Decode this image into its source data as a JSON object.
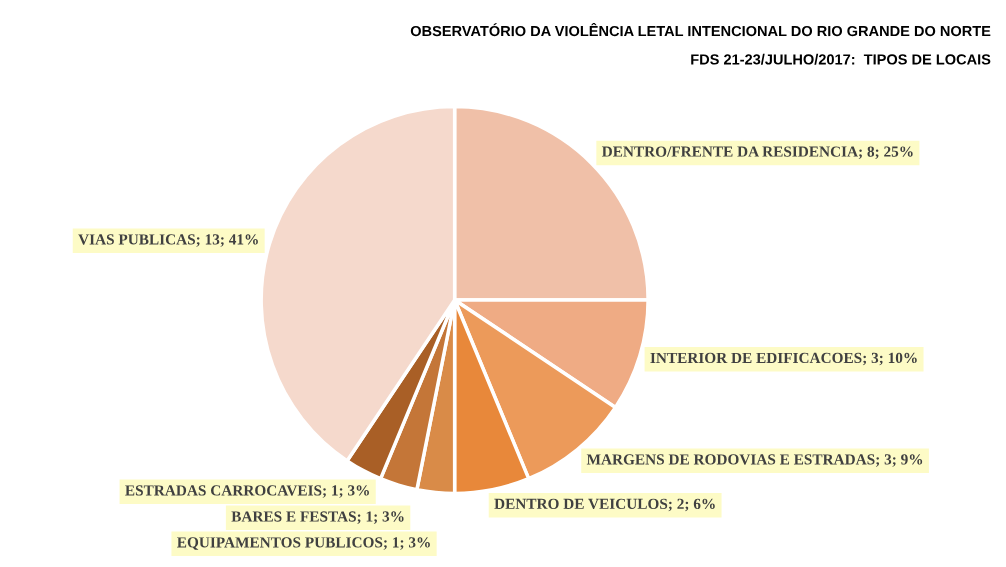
{
  "chart_data": {
    "type": "pie",
    "title": "OBSERVATÓRIO DA VIOLÊNCIA LETAL INTENCIONAL DO RIO GRANDE DO NORTE",
    "subtitle": "FDS 21-23/JULHO/2017:  TIPOS DE LOCAIS",
    "categories": [
      "DENTRO/FRENTE DA RESIDENCIA",
      "INTERIOR DE EDIFICACOES",
      "MARGENS DE RODOVIAS E ESTRADAS",
      "DENTRO DE VEICULOS",
      "EQUIPAMENTOS PUBLICOS",
      "BARES E FESTAS",
      "ESTRADAS CARROCAVEIS",
      "VIAS PUBLICAS"
    ],
    "values": [
      8,
      3,
      3,
      2,
      1,
      1,
      1,
      13
    ],
    "value_labels": [
      "8; 25%",
      "3; 10%",
      "3; 9%",
      "2; 6%",
      "1; 3%",
      "1; 3%",
      "1; 3%",
      "13; 41%"
    ],
    "colors": [
      "#f0c0a8",
      "#efab84",
      "#ec9a5a",
      "#e8883a",
      "#d98b48",
      "#c47638",
      "#a95f26",
      "#f5d9cc"
    ]
  }
}
